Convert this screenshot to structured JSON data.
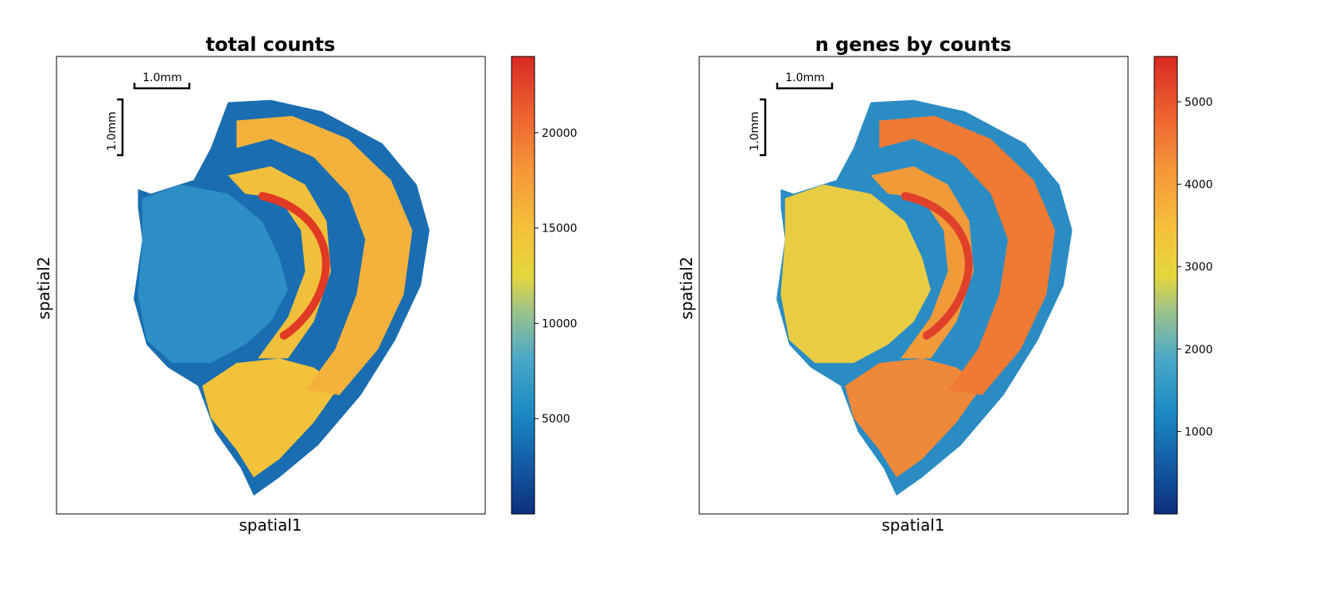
{
  "chart_data": [
    {
      "type": "heatmap",
      "title": "total counts",
      "xlabel": "spatial1",
      "ylabel": "spatial2",
      "scalebar": {
        "horizontal": "1.0mm",
        "vertical": "1.0mm"
      },
      "colorbar": {
        "colormap": "RdYlBu_r",
        "range": [
          0,
          24000
        ],
        "ticks": [
          5000,
          10000,
          15000,
          20000
        ],
        "tick_labels": [
          "5000",
          "10000",
          "15000",
          "20000"
        ]
      },
      "regions": [
        {
          "region": "tissue rim",
          "value": 3000
        },
        {
          "region": "left lobe",
          "value": 6500
        },
        {
          "region": "outer arc",
          "value": 16000
        },
        {
          "region": "lower lobe",
          "value": 14500
        },
        {
          "region": "middle band",
          "value": 5000
        },
        {
          "region": "inner arc",
          "value": 15500
        },
        {
          "region": "dentate curve",
          "value": 22000
        }
      ]
    },
    {
      "type": "heatmap",
      "title": "n genes by counts",
      "xlabel": "spatial1",
      "ylabel": "spatial2",
      "scalebar": {
        "horizontal": "1.0mm",
        "vertical": "1.0mm"
      },
      "colorbar": {
        "colormap": "RdYlBu_r",
        "range": [
          0,
          5550
        ],
        "ticks": [
          1000,
          2000,
          3000,
          4000,
          5000
        ],
        "tick_labels": [
          "1000",
          "2000",
          "3000",
          "4000",
          "5000"
        ]
      },
      "regions": [
        {
          "region": "tissue rim",
          "value": 1000
        },
        {
          "region": "left lobe",
          "value": 3000
        },
        {
          "region": "outer arc",
          "value": 4300
        },
        {
          "region": "lower lobe",
          "value": 4100
        },
        {
          "region": "middle band",
          "value": 2500
        },
        {
          "region": "inner arc",
          "value": 4000
        },
        {
          "region": "dentate curve",
          "value": 5000
        }
      ]
    }
  ]
}
